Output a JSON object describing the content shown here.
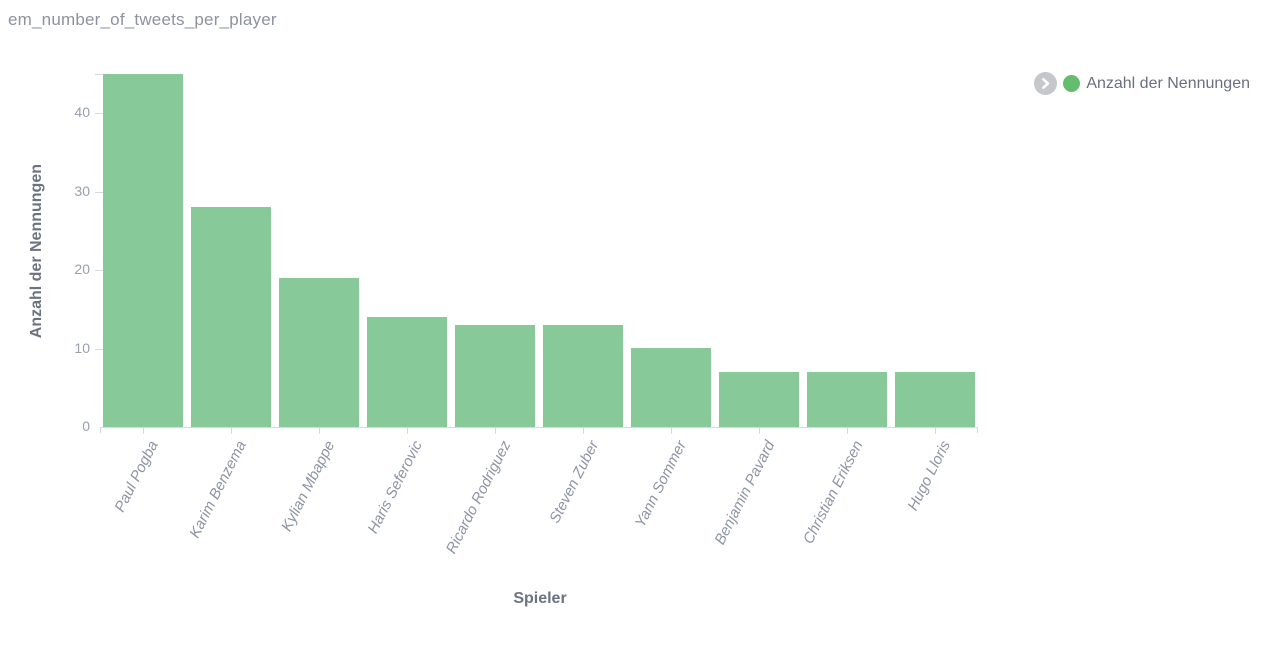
{
  "title": "em_number_of_tweets_per_player",
  "legend": {
    "series_label": "Anzahl der Nennungen",
    "dot_color": "#64bd6e",
    "position": "top-right"
  },
  "colors": {
    "bar": "#88c999",
    "legend_dot": "#64bd6e",
    "title_text": "#8d939c",
    "legend_text": "#69707d",
    "axis_title_text": "#6a7380",
    "tick_label_text": "#98a0ac",
    "category_label_text": "#8c95a3",
    "axis_line": "#d6d9de"
  },
  "chart_data": {
    "type": "bar",
    "title": "em_number_of_tweets_per_player",
    "categories": [
      "Paul Pogba",
      "Karim Benzema",
      "Kylian Mbappe",
      "Haris Seferovic",
      "Ricardo Rodriguez",
      "Steven Zuber",
      "Yann Sommer",
      "Benjamin Pavard",
      "Christian Eriksen",
      "Hugo Lloris"
    ],
    "series": [
      {
        "name": "Anzahl der Nennungen",
        "values": [
          45,
          28,
          19,
          14,
          13,
          13,
          10,
          7,
          7,
          7
        ]
      }
    ],
    "xlabel": "Spieler",
    "ylabel": "Anzahl der Nennungen",
    "ylim": [
      0,
      45
    ],
    "yticks": [
      0,
      10,
      20,
      30,
      40
    ],
    "grid": false,
    "legend_position": "top-right",
    "bar_color": "#88c999"
  }
}
